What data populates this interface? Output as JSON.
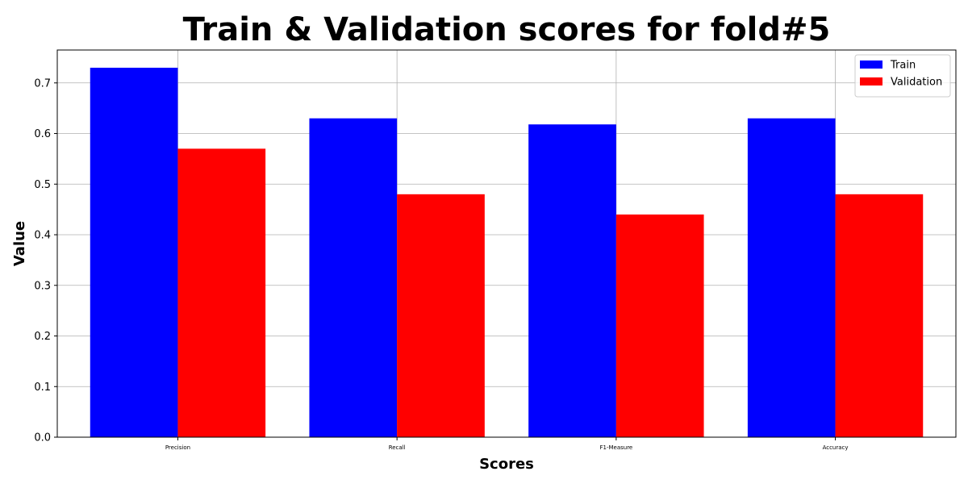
{
  "chart_data": {
    "type": "bar",
    "title": "Train & Validation scores for fold#5",
    "xlabel": "Scores",
    "ylabel": "Value",
    "categories": [
      "Precision",
      "Recall",
      "F1-Measure",
      "Accuracy"
    ],
    "series": [
      {
        "name": "Train",
        "color": "#0000ff",
        "values": [
          0.73,
          0.63,
          0.618,
          0.63
        ]
      },
      {
        "name": "Validation",
        "color": "#ff0000",
        "values": [
          0.57,
          0.48,
          0.44,
          0.48
        ]
      }
    ],
    "ylim": [
      0,
      0.765
    ],
    "yticks": [
      "0.0",
      "0.1",
      "0.2",
      "0.3",
      "0.4",
      "0.5",
      "0.6",
      "0.7"
    ],
    "grid": true,
    "legend_position": "top-right"
  }
}
